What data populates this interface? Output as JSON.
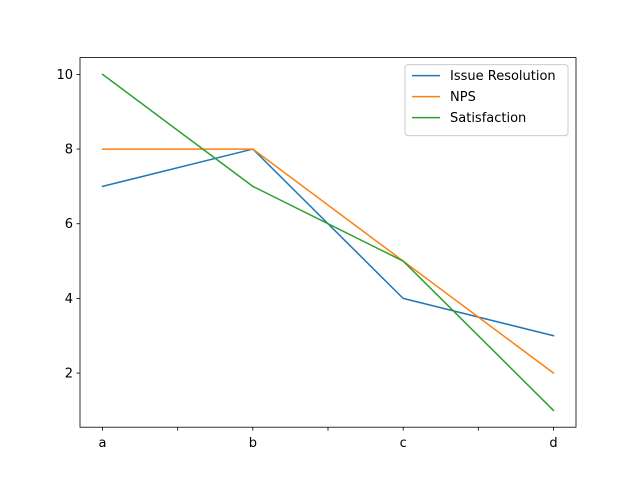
{
  "chart_data": {
    "type": "line",
    "title": "",
    "xlabel": "",
    "ylabel": "",
    "categories": [
      "a",
      "b",
      "c",
      "d"
    ],
    "series": [
      {
        "name": "Issue Resolution",
        "values": [
          7,
          8,
          4,
          3
        ],
        "color": "#1f77b4"
      },
      {
        "name": "NPS",
        "values": [
          8,
          8,
          5,
          2
        ],
        "color": "#ff7f0e"
      },
      {
        "name": "Satisfaction",
        "values": [
          10,
          7,
          5,
          1
        ],
        "color": "#2ca02c"
      }
    ],
    "ylim": [
      0.55,
      10.45
    ],
    "yticks": [
      2,
      4,
      6,
      8,
      10
    ],
    "xticks_minor": [
      0.5,
      1.5,
      2.5
    ],
    "grid": false,
    "legend": "upper right"
  }
}
